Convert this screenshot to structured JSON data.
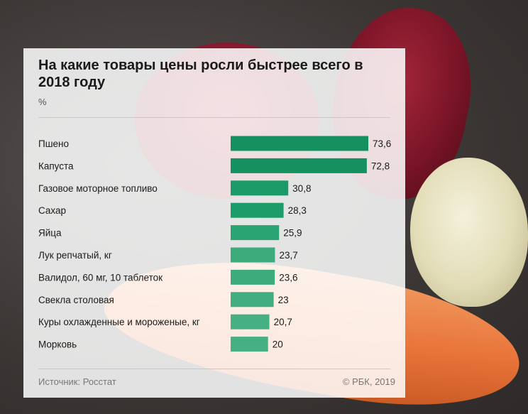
{
  "chart_data": {
    "type": "bar",
    "orientation": "horizontal",
    "title": "На какие товары цены росли быстрее всего в 2018 году",
    "unit": "%",
    "categories": [
      "Пшено",
      "Капуста",
      "Газовое моторное топливо",
      "Сахар",
      "Яйца",
      "Лук репчатый, кг",
      "Валидол, 60 мг, 10 таблеток",
      "Свекла столовая",
      "Куры охлажденные и мороженые, кг",
      "Морковь"
    ],
    "values": [
      73.6,
      72.8,
      30.8,
      28.3,
      25.9,
      23.7,
      23.6,
      23,
      20.7,
      20
    ],
    "value_labels": [
      "73,6",
      "72,8",
      "30,8",
      "28,3",
      "25,9",
      "23,7",
      "23,6",
      "23",
      "20,7",
      "20"
    ],
    "xlim": [
      0,
      73.6
    ],
    "colors": [
      "#14915f",
      "#14915f",
      "#1c9a67",
      "#1d9c69",
      "#29a472",
      "#3dab7c",
      "#3dab7c",
      "#41ad80",
      "#46b084",
      "#46b084"
    ],
    "grid": false,
    "legend": false
  },
  "footer": {
    "source": "Источник: Росстат",
    "copyright": "© РБК, 2019"
  }
}
